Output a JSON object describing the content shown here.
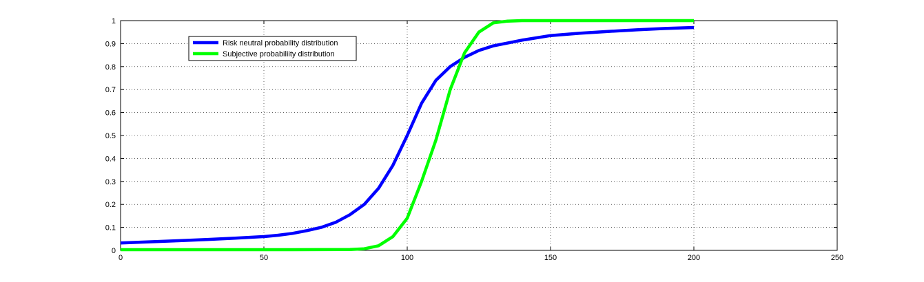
{
  "chart_data": {
    "type": "line",
    "title": "",
    "xlabel": "",
    "ylabel": "",
    "xlim": [
      0,
      250
    ],
    "ylim": [
      0,
      1
    ],
    "xticks": [
      0,
      50,
      100,
      150,
      200,
      250
    ],
    "yticks": [
      0,
      0.1,
      0.2,
      0.3,
      0.4,
      0.5,
      0.6,
      0.7,
      0.8,
      0.9,
      1
    ],
    "xtick_labels": [
      "0",
      "50",
      "100",
      "150",
      "200",
      "250"
    ],
    "ytick_labels": [
      "0",
      "0.1",
      "0.2",
      "0.3",
      "0.4",
      "0.5",
      "0.6",
      "0.7",
      "0.8",
      "0.9",
      "1"
    ],
    "grid": true,
    "legend_position": "top-left",
    "series": [
      {
        "name": "Risk neutral probability distribution",
        "color": "#0000ff",
        "x": [
          0,
          10,
          20,
          30,
          40,
          50,
          55,
          60,
          65,
          70,
          75,
          80,
          85,
          90,
          95,
          100,
          105,
          110,
          115,
          120,
          125,
          130,
          140,
          150,
          160,
          170,
          180,
          190,
          200
        ],
        "y": [
          0.032,
          0.037,
          0.042,
          0.047,
          0.053,
          0.06,
          0.066,
          0.074,
          0.086,
          0.1,
          0.122,
          0.155,
          0.2,
          0.27,
          0.37,
          0.5,
          0.64,
          0.74,
          0.8,
          0.84,
          0.87,
          0.89,
          0.915,
          0.935,
          0.945,
          0.953,
          0.96,
          0.966,
          0.97
        ]
      },
      {
        "name": "Subjective probabiliity distribution",
        "color": "#00ff00",
        "x": [
          0,
          20,
          40,
          60,
          80,
          85,
          90,
          95,
          100,
          105,
          110,
          115,
          120,
          125,
          130,
          135,
          140,
          150,
          160,
          170,
          180,
          190,
          200
        ],
        "y": [
          0.003,
          0.003,
          0.003,
          0.003,
          0.004,
          0.007,
          0.02,
          0.06,
          0.14,
          0.3,
          0.48,
          0.7,
          0.86,
          0.95,
          0.99,
          0.998,
          1,
          1,
          1,
          1,
          1,
          1,
          1
        ]
      }
    ]
  }
}
